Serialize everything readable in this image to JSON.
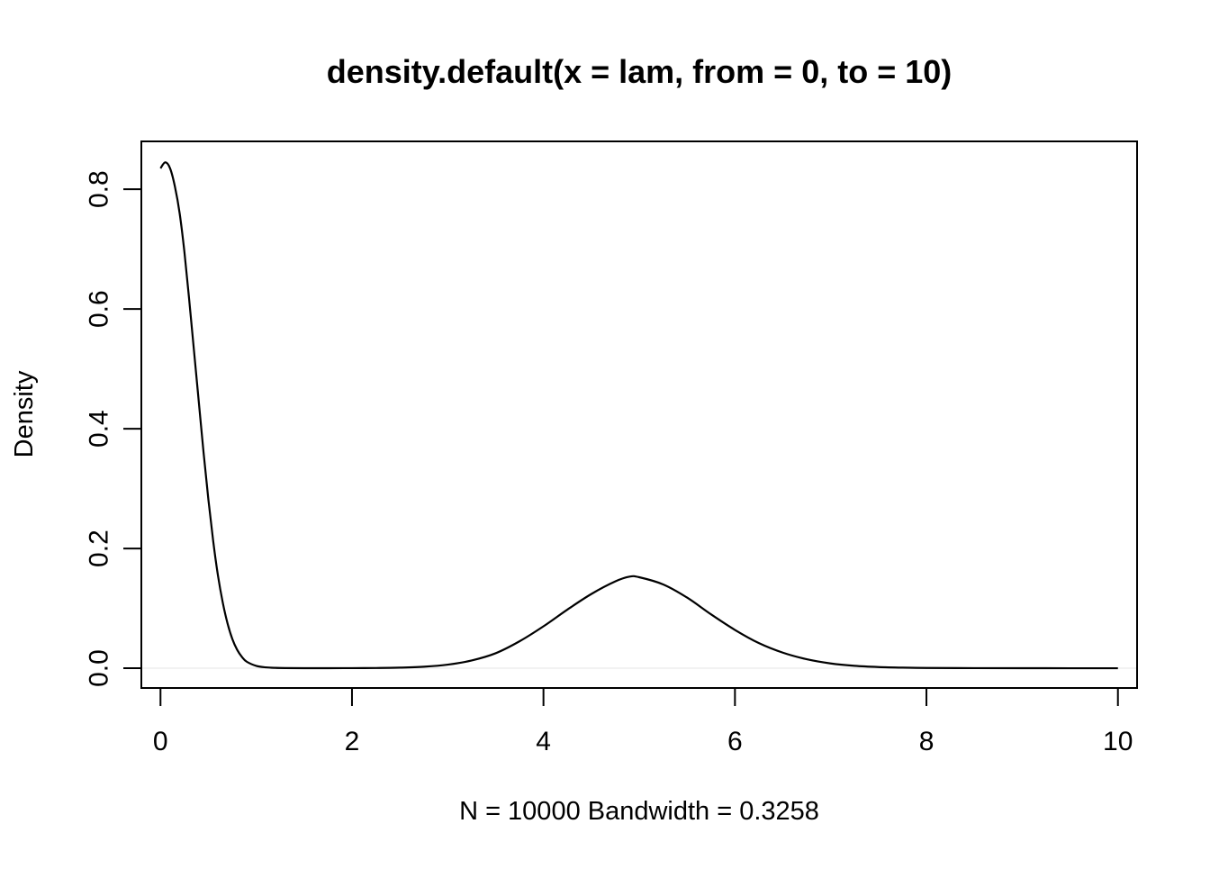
{
  "chart_data": {
    "type": "line",
    "title": "density.default(x = lam, from = 0, to = 10)",
    "xlabel": "N = 10000   Bandwidth = 0.3258",
    "ylabel": "Density",
    "xlim": [
      -0.2,
      10.2
    ],
    "ylim": [
      -0.033,
      0.88
    ],
    "x_ticks": [
      0,
      2,
      4,
      6,
      8,
      10
    ],
    "x_tick_labels": [
      "0",
      "2",
      "4",
      "6",
      "8",
      "10"
    ],
    "y_ticks": [
      0.0,
      0.2,
      0.4,
      0.6,
      0.8
    ],
    "y_tick_labels": [
      "0.0",
      "0.2",
      "0.4",
      "0.6",
      "0.8"
    ],
    "grid": false,
    "legend": "none",
    "colors": {
      "line": "#000000",
      "axis": "#000000",
      "zero_line": "#e6e6e6",
      "background": "#ffffff"
    },
    "series": [
      {
        "x": [
          0,
          0.05,
          0.1,
          0.15,
          0.2,
          0.25,
          0.3,
          0.35,
          0.4,
          0.45,
          0.5,
          0.55,
          0.6,
          0.65,
          0.7,
          0.75,
          0.8,
          0.85,
          0.9,
          1.0,
          1.1,
          1.2,
          1.3,
          1.5,
          1.75,
          2.0,
          2.25,
          2.5,
          2.75,
          3.0,
          3.25,
          3.5,
          3.75,
          4.0,
          4.25,
          4.5,
          4.75,
          4.9,
          5.0,
          5.25,
          5.5,
          5.75,
          6.0,
          6.25,
          6.5,
          6.75,
          7.0,
          7.25,
          7.5,
          7.75,
          8.0,
          8.5,
          9.0,
          9.5,
          10.0
        ],
        "y": [
          0.835,
          0.845,
          0.835,
          0.805,
          0.76,
          0.695,
          0.615,
          0.53,
          0.445,
          0.36,
          0.282,
          0.213,
          0.155,
          0.11,
          0.075,
          0.049,
          0.031,
          0.019,
          0.011,
          0.004,
          0.0015,
          0.0006,
          0.0003,
          0.0001,
          0.0001,
          0.0002,
          0.0004,
          0.001,
          0.0025,
          0.006,
          0.013,
          0.025,
          0.045,
          0.07,
          0.098,
          0.124,
          0.145,
          0.153,
          0.152,
          0.14,
          0.118,
          0.09,
          0.064,
          0.042,
          0.026,
          0.015,
          0.008,
          0.004,
          0.002,
          0.001,
          0.0005,
          0.0002,
          0.0001,
          0.0,
          0.0
        ]
      }
    ]
  }
}
